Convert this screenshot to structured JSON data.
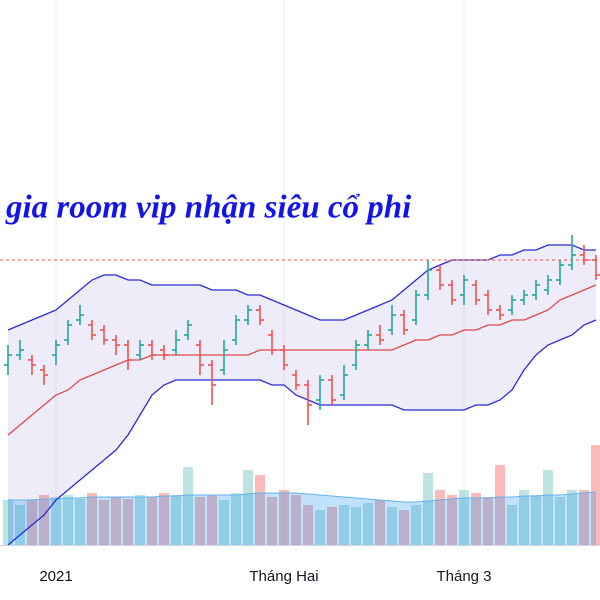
{
  "chart_data": {
    "type": "ohlc",
    "annotation": "gia room vip nhận siêu cổ phi",
    "categories": [
      null,
      null,
      null,
      null,
      "2021",
      null,
      null,
      null,
      null,
      null,
      null,
      null,
      null,
      null,
      null,
      null,
      null,
      null,
      null,
      null,
      null,
      null,
      null,
      "Tháng Hai",
      null,
      null,
      null,
      null,
      null,
      null,
      null,
      null,
      null,
      null,
      null,
      null,
      null,
      null,
      "Tháng 3",
      null,
      null,
      null,
      null,
      null,
      null,
      null,
      null,
      null,
      null,
      null
    ],
    "open": [
      36,
      38,
      37,
      35,
      38,
      41,
      45,
      44,
      43,
      41,
      40,
      38,
      40,
      39,
      39,
      42,
      40,
      36,
      35,
      41,
      45,
      47,
      42,
      39,
      34,
      32,
      29,
      33,
      30,
      36,
      40,
      42,
      43,
      46,
      45,
      50,
      55,
      52,
      50,
      52,
      50,
      47,
      47,
      49,
      50,
      51,
      53,
      56,
      58,
      57
    ],
    "high": [
      40,
      41,
      38,
      36,
      41,
      45,
      48,
      45,
      44,
      42,
      41,
      41,
      41,
      40,
      43,
      45,
      41,
      37,
      41,
      46,
      48,
      48,
      43,
      40,
      35,
      33,
      34,
      34,
      36,
      41,
      43,
      44,
      48,
      47,
      51,
      57,
      56,
      53,
      54,
      53,
      51,
      48,
      50,
      51,
      53,
      54,
      57,
      62,
      60,
      58
    ],
    "low": [
      34,
      37,
      34,
      32,
      36,
      40,
      44,
      41,
      40,
      38,
      35,
      37,
      37,
      37,
      38,
      41,
      34,
      28,
      34,
      40,
      44,
      44,
      38,
      35,
      31,
      24,
      27,
      28,
      29,
      35,
      39,
      40,
      42,
      42,
      44,
      49,
      51,
      48,
      48,
      48,
      46,
      45,
      46,
      48,
      49,
      50,
      52,
      55,
      56,
      53
    ],
    "close": [
      38,
      39,
      36,
      34,
      40,
      44,
      46,
      42,
      41,
      40,
      37,
      40,
      38,
      38,
      41,
      44,
      36,
      32,
      39,
      45,
      47,
      45,
      39,
      36,
      32,
      28,
      33,
      29,
      34,
      40,
      42,
      41,
      46,
      43,
      50,
      55,
      52,
      49,
      53,
      49,
      47,
      46,
      49,
      50,
      52,
      53,
      56,
      58,
      57,
      54
    ],
    "up_color": "#26a69a",
    "down_color": "#ef5350",
    "ylim": [
      0,
      109
    ],
    "price_line": {
      "value": 57,
      "color": "#ef5350"
    },
    "bollinger": {
      "upper": [
        43,
        44,
        45,
        46,
        47,
        49,
        51,
        53,
        54,
        54,
        53,
        53,
        52,
        52,
        52,
        52,
        52,
        51,
        51,
        51,
        50,
        50,
        49,
        48,
        47,
        46,
        45,
        45,
        45,
        46,
        47,
        48,
        49,
        51,
        53,
        55,
        56,
        57,
        57,
        57,
        57,
        58,
        58,
        59,
        59,
        60,
        60,
        60,
        59,
        59
      ],
      "middle": [
        22,
        24,
        26,
        28,
        30,
        31,
        33,
        34,
        35,
        36,
        37,
        37,
        38,
        38,
        38,
        38,
        38,
        38,
        38,
        38,
        38,
        39,
        39,
        39,
        39,
        39,
        39,
        39,
        39,
        39,
        39,
        39,
        39,
        40,
        41,
        41,
        42,
        42,
        43,
        43,
        44,
        44,
        45,
        45,
        46,
        47,
        49,
        50,
        51,
        52
      ],
      "lower": [
        0,
        2,
        4,
        6,
        9,
        11,
        13,
        15,
        17,
        19,
        22,
        26,
        30,
        32,
        33,
        33,
        33,
        33,
        33,
        33,
        33,
        33,
        32,
        32,
        30,
        29,
        28,
        28,
        28,
        28,
        28,
        28,
        28,
        27,
        27,
        27,
        27,
        27,
        27,
        28,
        28,
        29,
        31,
        35,
        38,
        40,
        41,
        42,
        44,
        45
      ],
      "band_color": "#2b2bd6",
      "middle_color": "#e0474c",
      "fill": "rgba(120,110,210,0.13)"
    },
    "volume": {
      "values": [
        45,
        40,
        45,
        50,
        48,
        50,
        46,
        52,
        45,
        48,
        46,
        50,
        48,
        52,
        50,
        78,
        48,
        50,
        45,
        52,
        75,
        70,
        48,
        55,
        50,
        40,
        35,
        38,
        40,
        38,
        42,
        45,
        38,
        35,
        40,
        72,
        55,
        50,
        55,
        52,
        48,
        80,
        40,
        55,
        50,
        75,
        48,
        55,
        55,
        100
      ],
      "ma": [
        45,
        45,
        45,
        46,
        46,
        47,
        47,
        48,
        48,
        48,
        48,
        48,
        48,
        49,
        49,
        50,
        50,
        50,
        50,
        50,
        51,
        52,
        52,
        52,
        52,
        51,
        50,
        49,
        48,
        47,
        46,
        45,
        44,
        43,
        43,
        44,
        45,
        46,
        47,
        47,
        47,
        48,
        48,
        49,
        49,
        50,
        50,
        51,
        52,
        53
      ],
      "ylim": [
        0,
        110
      ],
      "up_color": "rgba(38,166,154,0.3)",
      "down_color": "rgba(239,83,80,0.4)",
      "ma_fill": "rgba(33,150,243,0.28)",
      "ma_color": "#63b3ed"
    },
    "grid": true
  }
}
